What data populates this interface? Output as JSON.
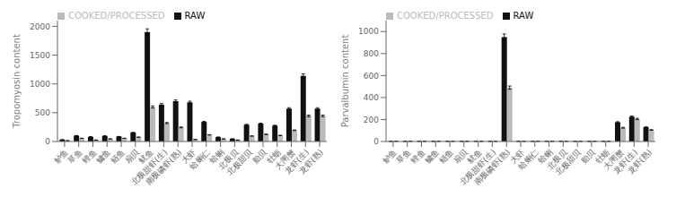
{
  "chart_data": [
    {
      "type": "bar",
      "categories": [
        "鲈鱼",
        "草鱼",
        "鲤鱼",
        "鳙鱼",
        "鲢鱼",
        "扇贝",
        "鱿鱼",
        "北极甜虾(生)",
        "南极磷虾(熟)",
        "大虾",
        "蛤蜊仁",
        "蛤蜊",
        "北极贝",
        "北极甜贝",
        "贻贝",
        "牡蛎",
        "大闸蟹",
        "龙虾(生)",
        "龙虾(熟)"
      ],
      "series": [
        {
          "name": "RAW",
          "color": "#111111",
          "values": [
            30,
            100,
            80,
            95,
            85,
            155,
            1900,
            640,
            700,
            680,
            340,
            75,
            45,
            290,
            310,
            275,
            570,
            1140,
            570
          ],
          "errors": [
            0.9,
            3,
            2.4,
            2.85,
            2.55,
            4.65,
            57,
            19.2,
            21,
            20.4,
            10.2,
            2.25,
            1.35,
            8.7,
            9.3,
            8.25,
            17.1,
            34.2,
            17.1
          ]
        },
        {
          "name": "COOKED/PROCESSED",
          "color": "#bbbbbb",
          "values": [
            15,
            55,
            25,
            45,
            55,
            75,
            600,
            320,
            245,
            35,
            115,
            45,
            25,
            95,
            125,
            105,
            195,
            445,
            445
          ],
          "errors": [
            0.45,
            1.65,
            0.75,
            1.35,
            1.65,
            2.25,
            18,
            9.6,
            7.35,
            1.05,
            3.45,
            1.35,
            0.75,
            2.85,
            3.75,
            3.15,
            5.85,
            13.35,
            13.35
          ]
        }
      ],
      "y_label": "Tropomyosin content",
      "ylim": [
        0,
        2100
      ],
      "yticks": [
        0,
        500,
        1000,
        1500,
        2000
      ],
      "grid": false,
      "legend": "upper left"
    },
    {
      "type": "bar",
      "categories": [
        "鲈鱼",
        "草鱼",
        "鲤鱼",
        "鳙鱼",
        "鲢鱼",
        "扇贝",
        "鱿鱼",
        "北极甜虾(生)",
        "南极磷虾(熟)",
        "大虾",
        "蛤蜊仁",
        "蛤蜊",
        "北极贝",
        "北极甜贝",
        "贻贝",
        "牡蛎",
        "大闸蟹",
        "龙虾(生)",
        "龙虾(熟)"
      ],
      "series": [
        {
          "name": "RAW",
          "color": "#111111",
          "values": [
            2,
            2,
            2,
            2,
            2,
            2,
            2,
            2,
            950,
            2,
            2,
            2,
            2,
            2,
            2,
            2,
            175,
            225,
            130
          ],
          "errors": [
            0.06,
            0.06,
            0.06,
            0.06,
            0.06,
            0.06,
            0.06,
            0.06,
            28.5,
            0.06,
            0.06,
            0.06,
            0.06,
            0.06,
            0.06,
            0.06,
            5.25,
            6.75,
            3.9
          ]
        },
        {
          "name": "COOKED/PROCESSED",
          "color": "#bbbbbb",
          "values": [
            2,
            2,
            2,
            2,
            2,
            2,
            2,
            2,
            490,
            2,
            2,
            2,
            2,
            2,
            2,
            2,
            125,
            205,
            105
          ],
          "errors": [
            0.06,
            0.06,
            0.06,
            0.06,
            0.06,
            0.06,
            0.06,
            0.06,
            14.7,
            0.06,
            0.06,
            0.06,
            0.06,
            0.06,
            0.06,
            0.06,
            3.75,
            6.15,
            3.15
          ]
        }
      ],
      "y_label": "Parvalbumin content",
      "ylim": [
        0,
        1100
      ],
      "yticks": [
        0,
        200,
        400,
        600,
        800,
        1000
      ],
      "grid": false,
      "legend": "upper left"
    }
  ]
}
